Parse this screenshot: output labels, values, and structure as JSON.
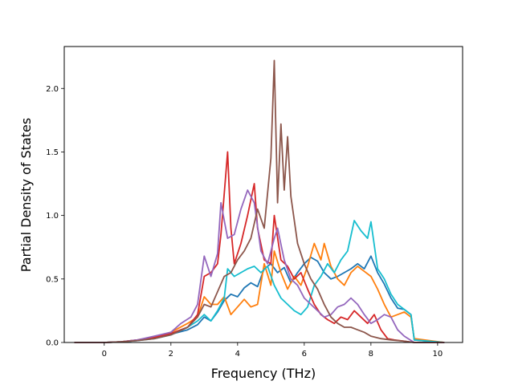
{
  "chart_data": {
    "type": "line",
    "title": "",
    "xlabel": "Frequency (THz)",
    "ylabel": "Partial Density of States",
    "xlim": [
      -1.2,
      10.75
    ],
    "ylim": [
      0,
      2.33
    ],
    "xticks": [
      0,
      2,
      4,
      6,
      8,
      10
    ],
    "xtick_labels": [
      "0",
      "2",
      "4",
      "6",
      "8",
      "10"
    ],
    "yticks": [
      0.0,
      0.5,
      1.0,
      1.5,
      2.0
    ],
    "ytick_labels": [
      "0.0",
      "0.5",
      "1.0",
      "1.5",
      "2.0"
    ],
    "grid": false,
    "legend": "none",
    "series": [
      {
        "color": "#1f77b4",
        "points": [
          [
            -0.9,
            0.0
          ],
          [
            0.0,
            0.0
          ],
          [
            0.5,
            0.005
          ],
          [
            1.0,
            0.015
          ],
          [
            1.5,
            0.035
          ],
          [
            2.0,
            0.065
          ],
          [
            2.5,
            0.1
          ],
          [
            2.8,
            0.14
          ],
          [
            3.0,
            0.2
          ],
          [
            3.2,
            0.17
          ],
          [
            3.4,
            0.24
          ],
          [
            3.6,
            0.33
          ],
          [
            3.8,
            0.38
          ],
          [
            4.0,
            0.36
          ],
          [
            4.2,
            0.43
          ],
          [
            4.4,
            0.47
          ],
          [
            4.6,
            0.44
          ],
          [
            4.8,
            0.58
          ],
          [
            5.0,
            0.62
          ],
          [
            5.2,
            0.55
          ],
          [
            5.4,
            0.59
          ],
          [
            5.6,
            0.47
          ],
          [
            5.8,
            0.55
          ],
          [
            6.0,
            0.62
          ],
          [
            6.2,
            0.67
          ],
          [
            6.4,
            0.64
          ],
          [
            6.6,
            0.55
          ],
          [
            6.8,
            0.5
          ],
          [
            7.0,
            0.52
          ],
          [
            7.2,
            0.55
          ],
          [
            7.4,
            0.58
          ],
          [
            7.6,
            0.62
          ],
          [
            7.8,
            0.58
          ],
          [
            8.0,
            0.68
          ],
          [
            8.2,
            0.55
          ],
          [
            8.4,
            0.46
          ],
          [
            8.6,
            0.35
          ],
          [
            8.8,
            0.27
          ],
          [
            9.0,
            0.26
          ],
          [
            9.2,
            0.22
          ],
          [
            9.3,
            0.02
          ],
          [
            10.2,
            0.0
          ]
        ]
      },
      {
        "color": "#ff7f0e",
        "points": [
          [
            -0.9,
            0.0
          ],
          [
            0.0,
            0.0
          ],
          [
            0.5,
            0.005
          ],
          [
            1.0,
            0.02
          ],
          [
            1.5,
            0.045
          ],
          [
            2.0,
            0.08
          ],
          [
            2.5,
            0.15
          ],
          [
            2.8,
            0.2
          ],
          [
            3.0,
            0.36
          ],
          [
            3.2,
            0.3
          ],
          [
            3.4,
            0.3
          ],
          [
            3.6,
            0.36
          ],
          [
            3.8,
            0.22
          ],
          [
            4.0,
            0.28
          ],
          [
            4.2,
            0.34
          ],
          [
            4.4,
            0.28
          ],
          [
            4.6,
            0.3
          ],
          [
            4.8,
            0.62
          ],
          [
            5.0,
            0.45
          ],
          [
            5.1,
            0.72
          ],
          [
            5.3,
            0.55
          ],
          [
            5.5,
            0.42
          ],
          [
            5.7,
            0.52
          ],
          [
            5.9,
            0.45
          ],
          [
            6.1,
            0.6
          ],
          [
            6.3,
            0.78
          ],
          [
            6.5,
            0.65
          ],
          [
            6.6,
            0.78
          ],
          [
            6.8,
            0.6
          ],
          [
            7.0,
            0.5
          ],
          [
            7.2,
            0.45
          ],
          [
            7.4,
            0.55
          ],
          [
            7.6,
            0.6
          ],
          [
            7.8,
            0.56
          ],
          [
            8.0,
            0.52
          ],
          [
            8.2,
            0.42
          ],
          [
            8.4,
            0.3
          ],
          [
            8.6,
            0.2
          ],
          [
            8.8,
            0.22
          ],
          [
            9.0,
            0.24
          ],
          [
            9.2,
            0.2
          ],
          [
            9.3,
            0.03
          ],
          [
            10.2,
            0.0
          ]
        ]
      },
      {
        "color": "#17becf",
        "points": [
          [
            -0.9,
            0.0
          ],
          [
            0.0,
            0.0
          ],
          [
            0.5,
            0.005
          ],
          [
            1.0,
            0.015
          ],
          [
            1.5,
            0.03
          ],
          [
            2.0,
            0.06
          ],
          [
            2.5,
            0.12
          ],
          [
            2.8,
            0.17
          ],
          [
            3.0,
            0.22
          ],
          [
            3.2,
            0.17
          ],
          [
            3.4,
            0.25
          ],
          [
            3.6,
            0.35
          ],
          [
            3.7,
            0.58
          ],
          [
            3.9,
            0.52
          ],
          [
            4.1,
            0.55
          ],
          [
            4.3,
            0.58
          ],
          [
            4.5,
            0.6
          ],
          [
            4.7,
            0.55
          ],
          [
            4.9,
            0.6
          ],
          [
            5.1,
            0.45
          ],
          [
            5.3,
            0.35
          ],
          [
            5.5,
            0.3
          ],
          [
            5.7,
            0.25
          ],
          [
            5.9,
            0.22
          ],
          [
            6.1,
            0.28
          ],
          [
            6.3,
            0.45
          ],
          [
            6.5,
            0.52
          ],
          [
            6.7,
            0.62
          ],
          [
            6.9,
            0.55
          ],
          [
            7.1,
            0.65
          ],
          [
            7.3,
            0.72
          ],
          [
            7.5,
            0.96
          ],
          [
            7.7,
            0.88
          ],
          [
            7.9,
            0.82
          ],
          [
            8.0,
            0.95
          ],
          [
            8.2,
            0.58
          ],
          [
            8.4,
            0.5
          ],
          [
            8.6,
            0.38
          ],
          [
            8.8,
            0.3
          ],
          [
            9.0,
            0.26
          ],
          [
            9.2,
            0.22
          ],
          [
            9.3,
            0.02
          ],
          [
            10.2,
            0.0
          ]
        ]
      },
      {
        "color": "#d62728",
        "points": [
          [
            -0.9,
            0.0
          ],
          [
            0.0,
            0.0
          ],
          [
            0.5,
            0.005
          ],
          [
            1.0,
            0.02
          ],
          [
            1.5,
            0.04
          ],
          [
            2.0,
            0.07
          ],
          [
            2.5,
            0.12
          ],
          [
            2.8,
            0.22
          ],
          [
            3.0,
            0.52
          ],
          [
            3.2,
            0.55
          ],
          [
            3.4,
            0.62
          ],
          [
            3.5,
            0.85
          ],
          [
            3.7,
            1.5
          ],
          [
            3.8,
            0.9
          ],
          [
            3.9,
            0.62
          ],
          [
            4.1,
            0.78
          ],
          [
            4.3,
            1.0
          ],
          [
            4.5,
            1.25
          ],
          [
            4.6,
            0.9
          ],
          [
            4.8,
            0.65
          ],
          [
            5.0,
            0.62
          ],
          [
            5.1,
            1.0
          ],
          [
            5.3,
            0.65
          ],
          [
            5.5,
            0.6
          ],
          [
            5.7,
            0.5
          ],
          [
            5.9,
            0.55
          ],
          [
            6.1,
            0.42
          ],
          [
            6.3,
            0.3
          ],
          [
            6.5,
            0.22
          ],
          [
            6.7,
            0.18
          ],
          [
            6.9,
            0.15
          ],
          [
            7.1,
            0.2
          ],
          [
            7.3,
            0.18
          ],
          [
            7.5,
            0.25
          ],
          [
            7.7,
            0.2
          ],
          [
            7.9,
            0.15
          ],
          [
            8.1,
            0.22
          ],
          [
            8.3,
            0.1
          ],
          [
            8.5,
            0.03
          ],
          [
            8.7,
            0.02
          ],
          [
            9.0,
            0.01
          ],
          [
            9.3,
            0.0
          ],
          [
            10.2,
            0.0
          ]
        ]
      },
      {
        "color": "#9467bd",
        "points": [
          [
            -0.9,
            0.0
          ],
          [
            0.0,
            0.0
          ],
          [
            0.5,
            0.005
          ],
          [
            1.0,
            0.02
          ],
          [
            1.5,
            0.05
          ],
          [
            2.0,
            0.08
          ],
          [
            2.3,
            0.15
          ],
          [
            2.6,
            0.2
          ],
          [
            2.8,
            0.3
          ],
          [
            3.0,
            0.68
          ],
          [
            3.2,
            0.52
          ],
          [
            3.4,
            0.7
          ],
          [
            3.5,
            1.1
          ],
          [
            3.7,
            0.82
          ],
          [
            3.9,
            0.85
          ],
          [
            4.1,
            1.05
          ],
          [
            4.3,
            1.2
          ],
          [
            4.5,
            1.1
          ],
          [
            4.7,
            0.72
          ],
          [
            4.9,
            0.62
          ],
          [
            5.1,
            0.82
          ],
          [
            5.2,
            0.9
          ],
          [
            5.4,
            0.65
          ],
          [
            5.6,
            0.5
          ],
          [
            5.8,
            0.45
          ],
          [
            6.0,
            0.35
          ],
          [
            6.2,
            0.3
          ],
          [
            6.4,
            0.25
          ],
          [
            6.6,
            0.2
          ],
          [
            6.8,
            0.22
          ],
          [
            7.0,
            0.28
          ],
          [
            7.2,
            0.3
          ],
          [
            7.4,
            0.35
          ],
          [
            7.6,
            0.3
          ],
          [
            7.8,
            0.22
          ],
          [
            8.0,
            0.15
          ],
          [
            8.2,
            0.18
          ],
          [
            8.4,
            0.22
          ],
          [
            8.6,
            0.2
          ],
          [
            8.8,
            0.1
          ],
          [
            9.0,
            0.05
          ],
          [
            9.3,
            0.0
          ],
          [
            10.2,
            0.0
          ]
        ]
      },
      {
        "color": "#8c564b",
        "points": [
          [
            -0.9,
            0.0
          ],
          [
            0.0,
            0.0
          ],
          [
            0.5,
            0.005
          ],
          [
            1.0,
            0.015
          ],
          [
            1.5,
            0.03
          ],
          [
            2.0,
            0.06
          ],
          [
            2.5,
            0.12
          ],
          [
            2.8,
            0.2
          ],
          [
            3.0,
            0.3
          ],
          [
            3.2,
            0.28
          ],
          [
            3.4,
            0.4
          ],
          [
            3.6,
            0.52
          ],
          [
            3.8,
            0.55
          ],
          [
            4.0,
            0.65
          ],
          [
            4.2,
            0.72
          ],
          [
            4.4,
            0.82
          ],
          [
            4.6,
            1.05
          ],
          [
            4.8,
            0.9
          ],
          [
            5.0,
            1.45
          ],
          [
            5.1,
            2.22
          ],
          [
            5.2,
            1.1
          ],
          [
            5.3,
            1.72
          ],
          [
            5.4,
            1.2
          ],
          [
            5.5,
            1.62
          ],
          [
            5.6,
            1.15
          ],
          [
            5.8,
            0.78
          ],
          [
            6.0,
            0.62
          ],
          [
            6.2,
            0.5
          ],
          [
            6.4,
            0.42
          ],
          [
            6.6,
            0.3
          ],
          [
            6.8,
            0.2
          ],
          [
            7.0,
            0.15
          ],
          [
            7.2,
            0.12
          ],
          [
            7.4,
            0.12
          ],
          [
            7.6,
            0.1
          ],
          [
            7.8,
            0.08
          ],
          [
            8.0,
            0.05
          ],
          [
            8.3,
            0.03
          ],
          [
            8.6,
            0.02
          ],
          [
            9.0,
            0.01
          ],
          [
            9.3,
            0.0
          ],
          [
            10.2,
            0.0
          ]
        ]
      }
    ]
  }
}
